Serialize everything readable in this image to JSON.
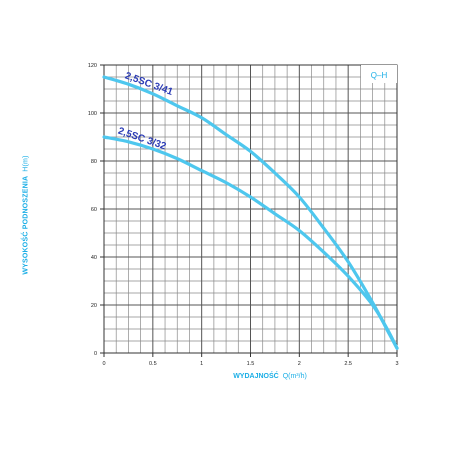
{
  "chart_data": {
    "type": "line",
    "title": "Q–H",
    "xlabel": "WYDAJNOŚĆ",
    "xlabel_unit": "Q(m³/h)",
    "ylabel": "WYSOKOŚĆ PODNOSZENIA",
    "ylabel_unit": "H(m)",
    "xlim": [
      0,
      3
    ],
    "ylim": [
      0,
      120
    ],
    "x_ticks": [
      0,
      0.5,
      1,
      1.5,
      2,
      2.5,
      3
    ],
    "x_tick_labels": [
      "0",
      "0.5",
      "1",
      "1.5",
      "2",
      "2.5",
      "3"
    ],
    "y_ticks": [
      0,
      20,
      40,
      60,
      80,
      100,
      120
    ],
    "y_tick_labels": [
      "0",
      "20",
      "40",
      "60",
      "80",
      "100",
      "120"
    ],
    "grid": true,
    "grid_x_step": 0.125,
    "grid_y_step": 5,
    "line_color": "#4ec7ee",
    "label_color": "#2b3bb6",
    "series": [
      {
        "name": "2,5SC 3/41",
        "x": [
          0,
          0.25,
          0.5,
          0.75,
          1,
          1.25,
          1.5,
          1.75,
          2,
          2.25,
          2.5,
          2.75,
          2.92,
          3
        ],
        "y": [
          115,
          112,
          108,
          103,
          98,
          91,
          84,
          75,
          65,
          52,
          38,
          21,
          8,
          2
        ]
      },
      {
        "name": "2,5SC 3/32",
        "x": [
          0,
          0.25,
          0.5,
          0.75,
          1,
          1.25,
          1.5,
          1.75,
          2,
          2.25,
          2.5,
          2.75,
          2.9,
          3
        ],
        "y": [
          90,
          88,
          85,
          81,
          76,
          71,
          65,
          58,
          51,
          42,
          32,
          20,
          10,
          2
        ]
      }
    ]
  }
}
